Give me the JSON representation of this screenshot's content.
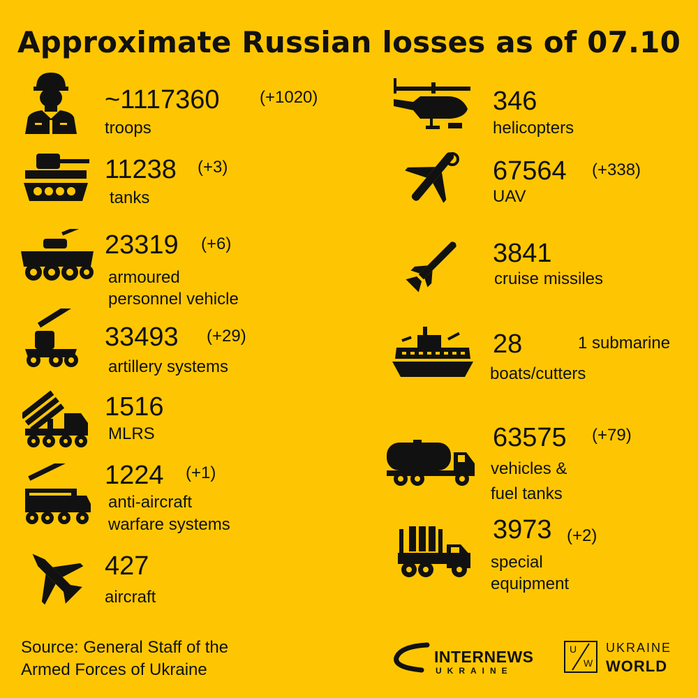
{
  "title": "Approximate Russian losses as of 07.10",
  "left": [
    {
      "icon": "soldier-icon",
      "value": "~1117360",
      "delta": "(+1020)",
      "label": "troops"
    },
    {
      "icon": "tank-icon",
      "value": "11238",
      "delta": "(+3)",
      "label": "tanks"
    },
    {
      "icon": "apc-icon",
      "value": "23319",
      "delta": "(+6)",
      "label": "armoured\npersonnel vehicle"
    },
    {
      "icon": "artillery-icon",
      "value": "33493",
      "delta": "(+29)",
      "label": "artillery systems"
    },
    {
      "icon": "mlrs-icon",
      "value": "1516",
      "delta": "",
      "label": "MLRS"
    },
    {
      "icon": "anti-aircraft-icon",
      "value": "1224",
      "delta": "(+1)",
      "label": "anti-aircraft\nwarfare systems"
    },
    {
      "icon": "aircraft-icon",
      "value": "427",
      "delta": "",
      "label": "aircraft"
    }
  ],
  "right": [
    {
      "icon": "helicopter-icon",
      "value": "346",
      "delta": "",
      "label": "helicopters"
    },
    {
      "icon": "uav-icon",
      "value": "67564",
      "delta": "(+338)",
      "label": "UAV"
    },
    {
      "icon": "missile-icon",
      "value": "3841",
      "delta": "",
      "label": "cruise missiles"
    },
    {
      "icon": "boat-icon",
      "value": "28",
      "delta": "1 submarine",
      "label": "boats/cutters"
    },
    {
      "icon": "fuel-truck-icon",
      "value": "63575",
      "delta": "(+79)",
      "label": "vehicles &\nfuel tanks"
    },
    {
      "icon": "special-truck-icon",
      "value": "3973",
      "delta": "(+2)",
      "label": "special\nequipment"
    }
  ],
  "source": "Source: General Staff of the\nArmed Forces of Ukraine",
  "logos": {
    "internews_main": "INTERNEWS",
    "internews_sub": "UKRAINE",
    "uw_top": "UKRAINE",
    "uw_bottom": "WORLD",
    "uw_mark_u": "U",
    "uw_mark_w": "W"
  },
  "colors": {
    "background": "#fec602",
    "ink": "#111111"
  }
}
